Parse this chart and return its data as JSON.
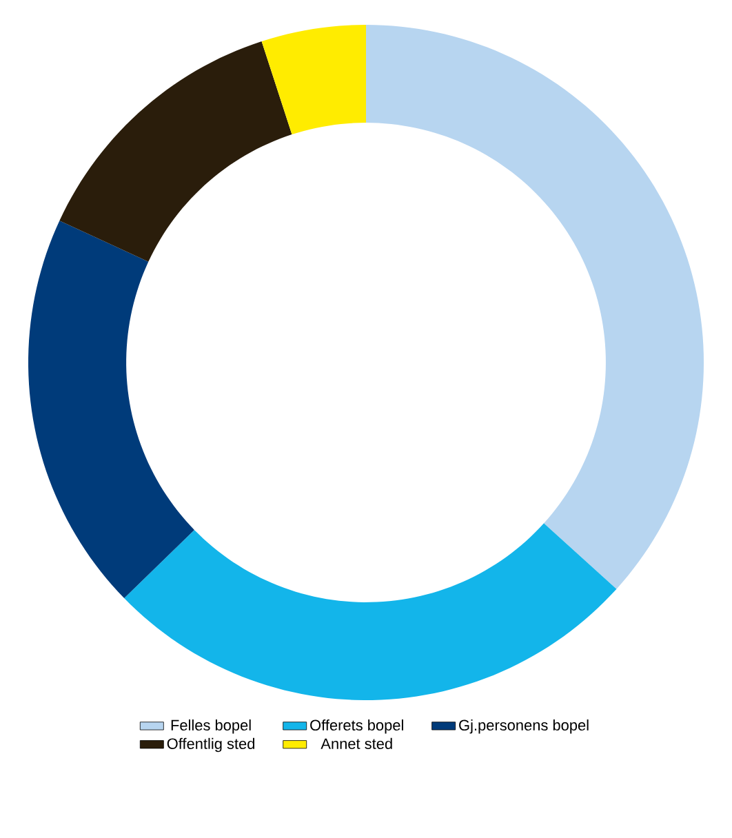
{
  "chart_data": {
    "type": "donut",
    "categories": [
      "Felles bopel",
      "Offerets bopel",
      "Gj.personens bopel",
      "Offentlig sted",
      "Annet sted"
    ],
    "values": [
      36.7,
      26.0,
      19.2,
      13.1,
      5.0
    ],
    "colors": [
      "#b7d5f0",
      "#13b5ea",
      "#003b7a",
      "#2a1d0b",
      "#ffec00"
    ],
    "legend": "bottom"
  }
}
